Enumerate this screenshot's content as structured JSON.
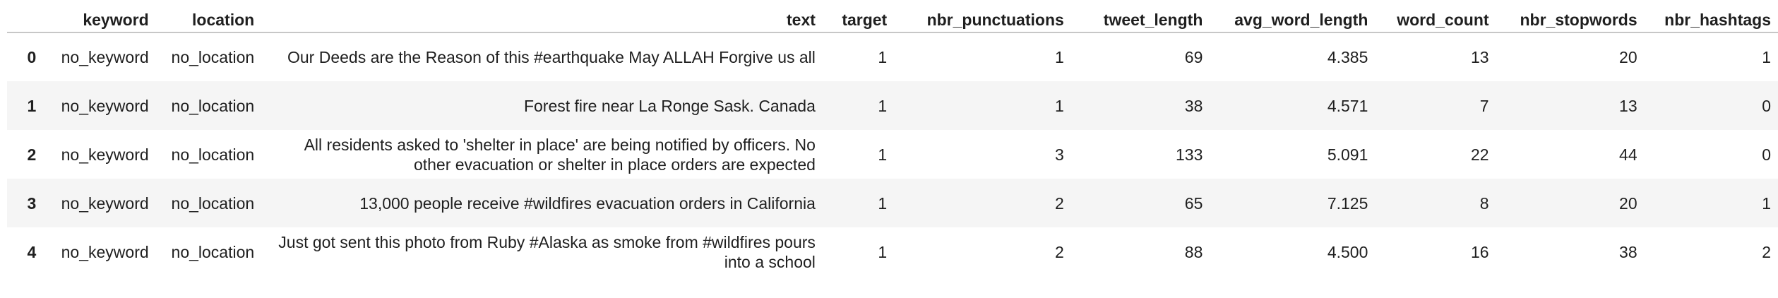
{
  "table": {
    "columns": [
      "keyword",
      "location",
      "text",
      "target",
      "nbr_punctuations",
      "tweet_length",
      "avg_word_length",
      "word_count",
      "nbr_stopwords",
      "nbr_hashtags"
    ],
    "rows": [
      {
        "index": "0",
        "keyword": "no_keyword",
        "location": "no_location",
        "text": "Our Deeds are the Reason of this #earthquake May ALLAH Forgive us all",
        "target": "1",
        "nbr_punctuations": "1",
        "tweet_length": "69",
        "avg_word_length": "4.385",
        "word_count": "13",
        "nbr_stopwords": "20",
        "nbr_hashtags": "1"
      },
      {
        "index": "1",
        "keyword": "no_keyword",
        "location": "no_location",
        "text": "Forest fire near La Ronge Sask. Canada",
        "target": "1",
        "nbr_punctuations": "1",
        "tweet_length": "38",
        "avg_word_length": "4.571",
        "word_count": "7",
        "nbr_stopwords": "13",
        "nbr_hashtags": "0"
      },
      {
        "index": "2",
        "keyword": "no_keyword",
        "location": "no_location",
        "text": "All residents asked to 'shelter in place' are being notified by officers. No other evacuation or shelter in place orders are expected",
        "target": "1",
        "nbr_punctuations": "3",
        "tweet_length": "133",
        "avg_word_length": "5.091",
        "word_count": "22",
        "nbr_stopwords": "44",
        "nbr_hashtags": "0"
      },
      {
        "index": "3",
        "keyword": "no_keyword",
        "location": "no_location",
        "text": "13,000 people receive #wildfires evacuation orders in California",
        "target": "1",
        "nbr_punctuations": "2",
        "tweet_length": "65",
        "avg_word_length": "7.125",
        "word_count": "8",
        "nbr_stopwords": "20",
        "nbr_hashtags": "1"
      },
      {
        "index": "4",
        "keyword": "no_keyword",
        "location": "no_location",
        "text": "Just got sent this photo from Ruby #Alaska as smoke from #wildfires pours into a school",
        "target": "1",
        "nbr_punctuations": "2",
        "tweet_length": "88",
        "avg_word_length": "4.500",
        "word_count": "16",
        "nbr_stopwords": "38",
        "nbr_hashtags": "2"
      }
    ]
  }
}
